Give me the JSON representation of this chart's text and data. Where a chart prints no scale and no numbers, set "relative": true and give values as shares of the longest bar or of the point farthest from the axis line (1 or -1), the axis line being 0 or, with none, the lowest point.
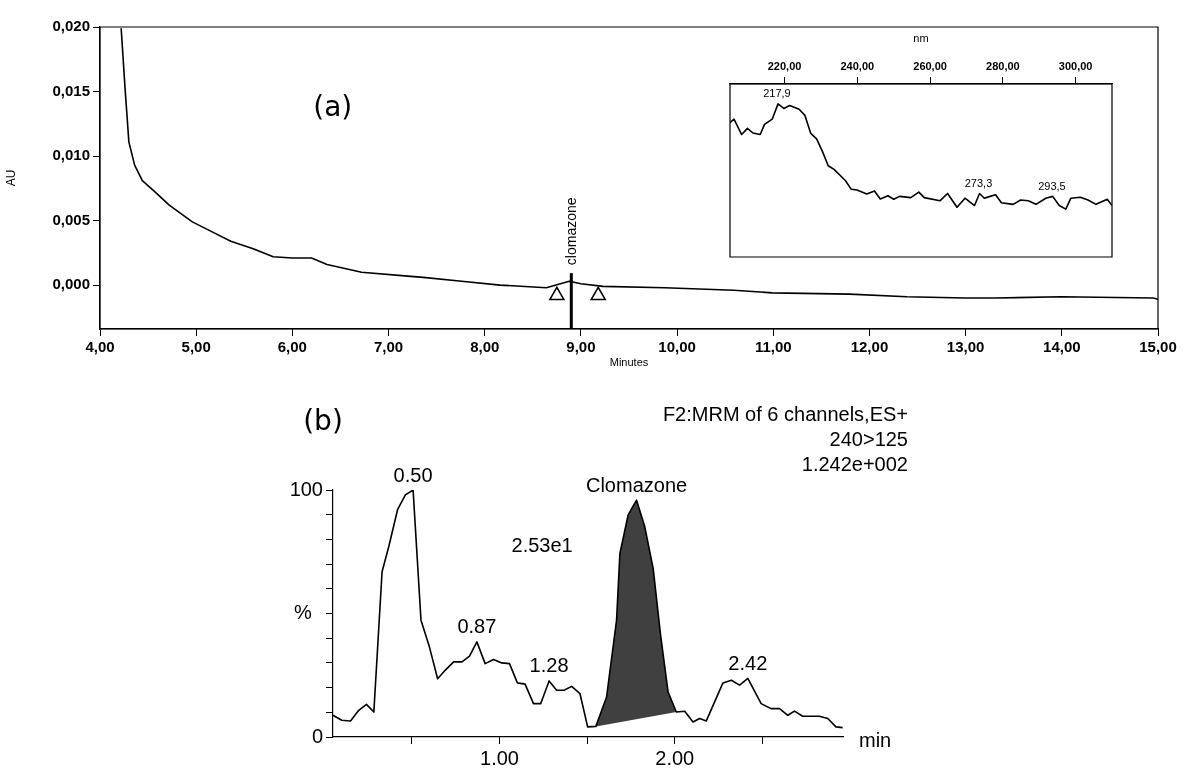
{
  "chart_data": [
    {
      "type": "line",
      "title": "(a)",
      "xlabel": "Minutes",
      "ylabel": "AU",
      "xlim": [
        4,
        15
      ],
      "xticks": [
        {
          "value": 4,
          "label": "4,00"
        },
        {
          "value": 5,
          "label": "5,00"
        },
        {
          "value": 6,
          "label": "6,00"
        },
        {
          "value": 7,
          "label": "7,00"
        },
        {
          "value": 8,
          "label": "8,00"
        },
        {
          "value": 9,
          "label": "9,00"
        },
        {
          "value": 10,
          "label": "10,00"
        },
        {
          "value": 11,
          "label": "11,00"
        },
        {
          "value": 12,
          "label": "12,00"
        },
        {
          "value": 13,
          "label": "13,00"
        },
        {
          "value": 14,
          "label": "14,00"
        },
        {
          "value": 15,
          "label": "15,00"
        }
      ],
      "ylim": [
        -0.0034,
        0.02
      ],
      "yticks": [
        {
          "value": 0,
          "label": "0,000"
        },
        {
          "value": 0.005,
          "label": "0,005"
        },
        {
          "value": 0.01,
          "label": "0,010"
        },
        {
          "value": 0.015,
          "label": "0,015"
        },
        {
          "value": 0.02,
          "label": "0,020"
        }
      ],
      "series": [
        {
          "type": "line",
          "color": "#000000",
          "x": [
            4.22,
            4.26,
            4.3,
            4.36,
            4.44,
            4.56,
            4.72,
            4.96,
            5.12,
            5.36,
            5.6,
            5.8,
            6.0,
            6.2,
            6.36,
            6.72,
            7.2,
            7.36,
            7.76,
            8.16,
            8.64,
            8.88,
            9.0,
            9.23,
            9.87,
            10.59,
            10.99,
            11.79,
            12.39,
            12.99,
            13.31,
            13.99,
            14.95,
            15.0
          ],
          "values": [
            0.0199,
            0.0153,
            0.0111,
            0.0093,
            0.0081,
            0.0073,
            0.0062,
            0.0049,
            0.0043,
            0.0034,
            0.0028,
            0.0022,
            0.0021,
            0.0021,
            0.0016,
            0.001,
            0.0007,
            0.0006,
            0.0003,
            0.0,
            -0.0002,
            0.0003,
            0.0001,
            -0.0001,
            -0.0002,
            -0.0004,
            -0.0006,
            -0.0007,
            -0.0009,
            -0.001,
            -0.001,
            -0.0009,
            -0.001,
            -0.0011
          ]
        },
        {
          "type": "scatter",
          "color": "#000000",
          "marker": "triangle",
          "x": [
            8.75,
            9.18
          ],
          "values": [
            -0.0008,
            -0.0008
          ]
        }
      ],
      "ref_lines": [
        {
          "axis": "x",
          "value": 8.9,
          "label": "clomazone"
        }
      ]
    },
    {
      "type": "line",
      "xlabel": "nm",
      "xlim": [
        205,
        310
      ],
      "xticks": [
        {
          "value": 220,
          "label": "220,00"
        },
        {
          "value": 240,
          "label": "240,00"
        },
        {
          "value": 260,
          "label": "260,00"
        },
        {
          "value": 280,
          "label": "280,00"
        },
        {
          "value": 300,
          "label": "300,00"
        }
      ],
      "relative": true,
      "tick_labels": "x",
      "series": [
        {
          "type": "line",
          "color": "#000000",
          "x": [
            205,
            206.1,
            208.2,
            209.8,
            211.3,
            213.3,
            214.5,
            216.6,
            218.2,
            219.8,
            221.4,
            224.0,
            225.6,
            227.2,
            228.8,
            230.4,
            232.0,
            233.6,
            236.7,
            238.3,
            239.9,
            242.6,
            244.7,
            246.3,
            248.4,
            250.0,
            251.6,
            254.7,
            256.9,
            258.4,
            262.7,
            264.8,
            267.4,
            269.6,
            272.2,
            273.6,
            274.9,
            276.5,
            278.0,
            279.6,
            282.8,
            284.9,
            287.0,
            289.1,
            291.8,
            293.7,
            295.5,
            297.3,
            298.7,
            301.3,
            303.4,
            305.6,
            308.7,
            310.0
          ],
          "values": [
            0.878,
            0.9,
            0.8,
            0.84,
            0.81,
            0.8,
            0.866,
            0.9,
            1,
            0.97,
            0.99,
            0.965,
            0.925,
            0.807,
            0.772,
            0.69,
            0.596,
            0.572,
            0.5,
            0.443,
            0.438,
            0.412,
            0.431,
            0.379,
            0.4,
            0.377,
            0.396,
            0.388,
            0.424,
            0.388,
            0.367,
            0.415,
            0.325,
            0.384,
            0.336,
            0.415,
            0.384,
            0.396,
            0.407,
            0.354,
            0.344,
            0.372,
            0.367,
            0.344,
            0.384,
            0.396,
            0.336,
            0.313,
            0.384,
            0.39,
            0.372,
            0.344,
            0.377,
            0.336
          ]
        }
      ],
      "annotations": [
        {
          "text": "217,9",
          "x": 217.9,
          "y": 1
        },
        {
          "text": "273,3",
          "x": 273.3,
          "y": 0.415
        },
        {
          "text": "293,5",
          "x": 293.5,
          "y": 0.396
        }
      ]
    },
    {
      "type": "line",
      "title": "(b)",
      "subtitle": "F2:MRM of 6 channels,ES+\n240>125\n1.242e+002",
      "xlabel": "min",
      "ylabel": "%",
      "xlim": [
        0.05,
        2.96
      ],
      "xticks": [
        {
          "value": 0.5,
          "label": null
        },
        {
          "value": 1,
          "label": "1.00"
        },
        {
          "value": 1.5,
          "label": null
        },
        {
          "value": 2,
          "label": "2.00"
        },
        {
          "value": 2.5,
          "label": null
        }
      ],
      "ylim": [
        0,
        100
      ],
      "yticks": [
        0,
        {
          "value": 10,
          "label": null
        },
        {
          "value": 20,
          "label": null
        },
        {
          "value": 30,
          "label": null
        },
        {
          "value": 40,
          "label": null
        },
        {
          "value": 50,
          "label": null
        },
        {
          "value": 60,
          "label": null
        },
        {
          "value": 70,
          "label": null
        },
        {
          "value": 80,
          "label": null
        },
        {
          "value": 90,
          "label": null
        },
        100
      ],
      "series": [
        {
          "type": "area",
          "color": "#404040",
          "x": [
            1.55,
            1.611,
            1.668,
            1.687,
            1.734,
            1.782,
            1.829,
            1.877,
            1.918,
            1.962,
            2.009
          ],
          "values": [
            4.3,
            16.2,
            47.3,
            74.3,
            89.9,
            95.9,
            85.1,
            68.2,
            41.9,
            18.2,
            10.1
          ]
        },
        {
          "type": "line",
          "color": "#000000",
          "x": [
            0.05,
            0.1,
            0.15,
            0.197,
            0.241,
            0.283,
            0.33,
            0.368,
            0.419,
            0.463,
            0.507,
            0.552,
            0.6,
            0.647,
            0.69,
            0.738,
            0.786,
            0.829,
            0.871,
            0.918,
            0.966,
            1.013,
            1.057,
            1.102,
            1.146,
            1.194,
            1.235,
            1.283,
            1.326,
            1.368,
            1.412,
            1.459,
            1.503,
            1.55,
            1.611,
            1.668,
            1.687,
            1.734,
            1.782,
            1.829,
            1.877,
            1.918,
            1.962,
            2.009,
            2.057,
            2.104,
            2.142,
            2.18,
            2.275,
            2.323,
            2.37,
            2.417,
            2.493,
            2.55,
            2.598,
            2.645,
            2.683,
            2.73,
            2.825,
            2.873,
            2.92,
            2.958
          ],
          "values": [
            8.8,
            6.8,
            6.5,
            10.8,
            13.2,
            10.1,
            66.9,
            77,
            92.2,
            98,
            100,
            47.3,
            36.5,
            23.6,
            27,
            30.4,
            30.4,
            32.7,
            38.5,
            29.7,
            31.4,
            30,
            29.7,
            21.9,
            21.4,
            13.5,
            13.5,
            22.7,
            18.9,
            18.9,
            20.5,
            17.6,
            4.1,
            4.3,
            16.2,
            47.3,
            74.3,
            89.9,
            95.9,
            85.1,
            68.2,
            41.9,
            18.2,
            10.1,
            10.4,
            6.1,
            7.5,
            6.5,
            21.9,
            23,
            21,
            23.7,
            13.5,
            11.5,
            11.5,
            8.8,
            10.5,
            8.4,
            8.4,
            7.5,
            4.1,
            3.8
          ]
        }
      ],
      "annotations": [
        {
          "text": "0.50",
          "x": 0.507,
          "y": 100
        },
        {
          "text": "0.87",
          "x": 0.871,
          "y": 38.5
        },
        {
          "text": "1.28",
          "x": 1.283,
          "y": 22.7
        },
        {
          "text": "2.42",
          "x": 2.417,
          "y": 23.7
        },
        {
          "text": "Clomazone",
          "x": 1.782,
          "y": 95.9
        },
        "2.53e1"
      ]
    }
  ]
}
